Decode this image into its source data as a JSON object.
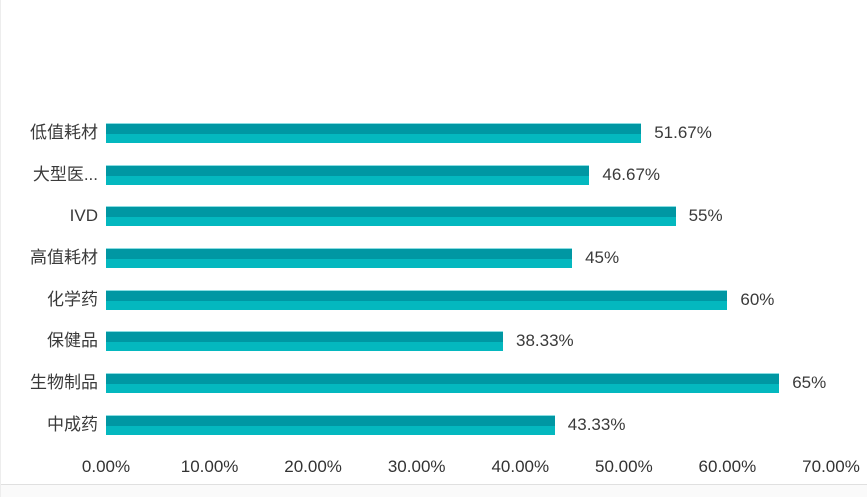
{
  "chart_data": {
    "type": "bar",
    "orientation": "horizontal",
    "title": "",
    "categories": [
      "低值耗材",
      "大型医...",
      "IVD",
      "高值耗材",
      "化学药",
      "保健品",
      "生物制品",
      "中成药"
    ],
    "values": [
      51.67,
      46.67,
      55,
      45,
      60,
      38.33,
      65,
      43.33
    ],
    "value_labels": [
      "51.67%",
      "46.67%",
      "55%",
      "45%",
      "60%",
      "38.33%",
      "65%",
      "43.33%"
    ],
    "x_ticks": [
      "0.00%",
      "10.00%",
      "20.00%",
      "30.00%",
      "40.00%",
      "50.00%",
      "60.00%",
      "70.00%"
    ],
    "x_tick_values": [
      0,
      10,
      20,
      30,
      40,
      50,
      60,
      70
    ],
    "xlim": [
      0,
      70
    ],
    "grid": false,
    "legend": "none",
    "colors": {
      "bar_top": "#0097a3",
      "bar_bottom": "#04b8bf",
      "text": "#3a3a3a",
      "divider": "#e0e0e0"
    }
  }
}
